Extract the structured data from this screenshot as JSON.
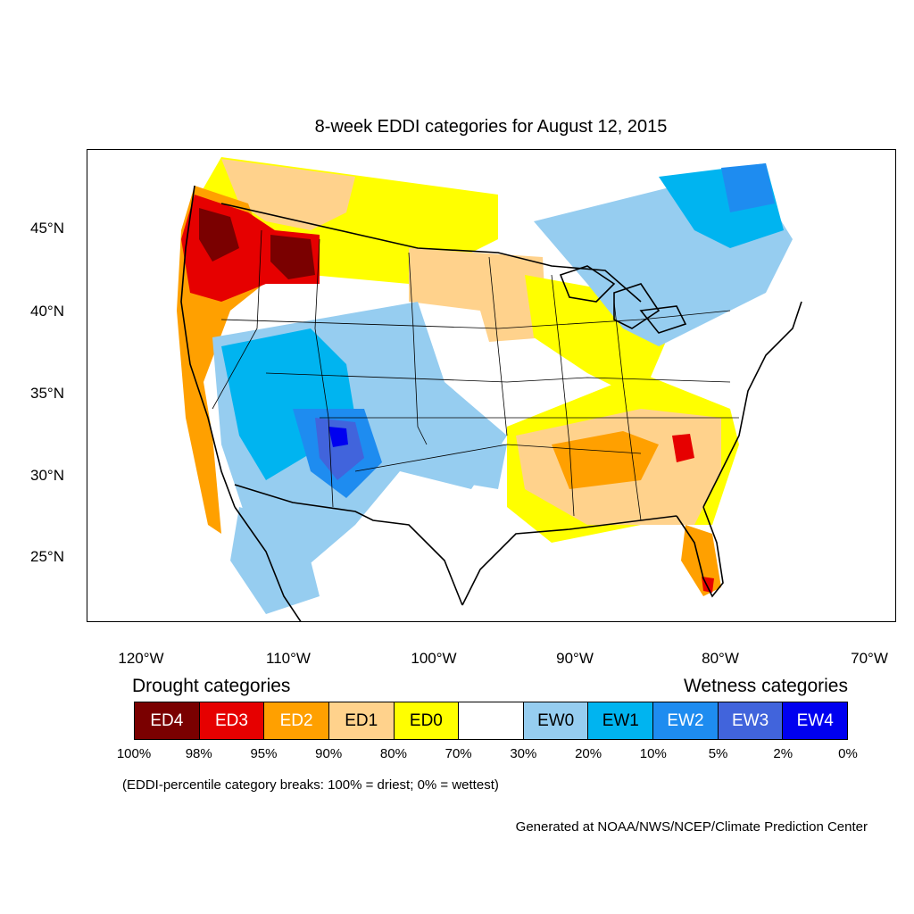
{
  "title": "8-week EDDI categories for August 12, 2015",
  "lat_labels": [
    "45°N",
    "40°N",
    "35°N",
    "30°N",
    "25°N"
  ],
  "lon_labels": [
    "120°W",
    "110°W",
    "100°W",
    "90°W",
    "80°W",
    "70°W"
  ],
  "legend": {
    "drought_heading": "Drought categories",
    "wetness_heading": "Wetness categories",
    "categories": [
      {
        "label": "ED4",
        "color": "#7a0000",
        "text_color": "#ffffff"
      },
      {
        "label": "ED3",
        "color": "#e60000",
        "text_color": "#ffffff"
      },
      {
        "label": "ED2",
        "color": "#ffa000",
        "text_color": "#ffffff"
      },
      {
        "label": "ED1",
        "color": "#ffd28c",
        "text_color": "#000000"
      },
      {
        "label": "ED0",
        "color": "#ffff00",
        "text_color": "#000000"
      },
      {
        "label": "",
        "color": "#ffffff",
        "text_color": "#000000"
      },
      {
        "label": "EW0",
        "color": "#96cdf0",
        "text_color": "#000000"
      },
      {
        "label": "EW1",
        "color": "#00b4f0",
        "text_color": "#000000"
      },
      {
        "label": "EW2",
        "color": "#1e8cf0",
        "text_color": "#ffffff"
      },
      {
        "label": "EW3",
        "color": "#4164dc",
        "text_color": "#ffffff"
      },
      {
        "label": "EW4",
        "color": "#0000f0",
        "text_color": "#ffffff"
      }
    ],
    "percentiles": [
      "100%",
      "98%",
      "95%",
      "90%",
      "80%",
      "70%",
      "30%",
      "20%",
      "10%",
      "5%",
      "2%",
      "0%"
    ]
  },
  "note": "(EDDI-percentile category breaks: 100% = driest; 0% = wettest)",
  "credit": "Generated at NOAA/NWS/NCEP/Climate Prediction Center"
}
